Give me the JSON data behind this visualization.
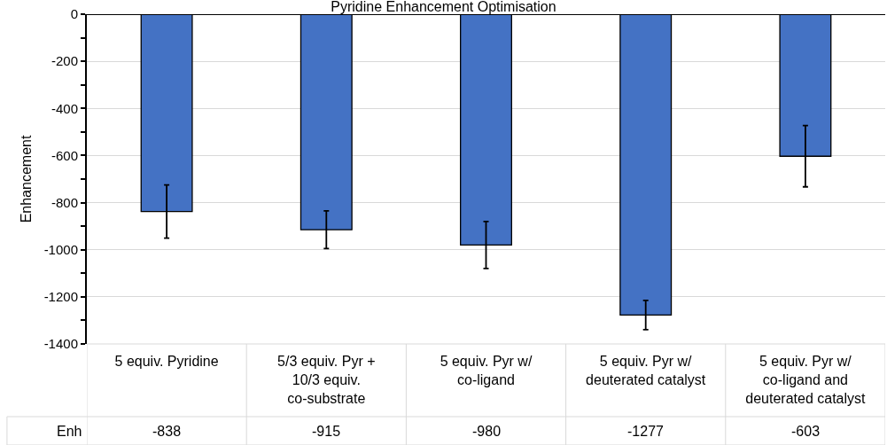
{
  "chart_data": {
    "type": "bar",
    "title": "Pyridine Enhancement Optimisation",
    "ylabel": "Enhancement",
    "categories": [
      "5 equiv. Pyridine",
      "5/3 equiv. Pyr + 10/3 equiv. co-substrate",
      "5 equiv. Pyr w/ co-ligand",
      "5 equiv. Pyr w/ deuterated catalyst",
      "5 equiv. Pyr w/ co-ligand and deuterated catalyst"
    ],
    "series": [
      {
        "name": "Enh",
        "color": "#4472c4",
        "values": [
          -838,
          -915,
          -980,
          -1277,
          -603
        ],
        "errors": [
          113,
          80,
          100,
          62,
          130
        ]
      }
    ],
    "ylim": [
      -1400,
      0
    ],
    "yticks": [
      0,
      -200,
      -400,
      -600,
      -800,
      -1000,
      -1200,
      -1400
    ],
    "grid": "y",
    "data_labels": true,
    "legend": false
  }
}
